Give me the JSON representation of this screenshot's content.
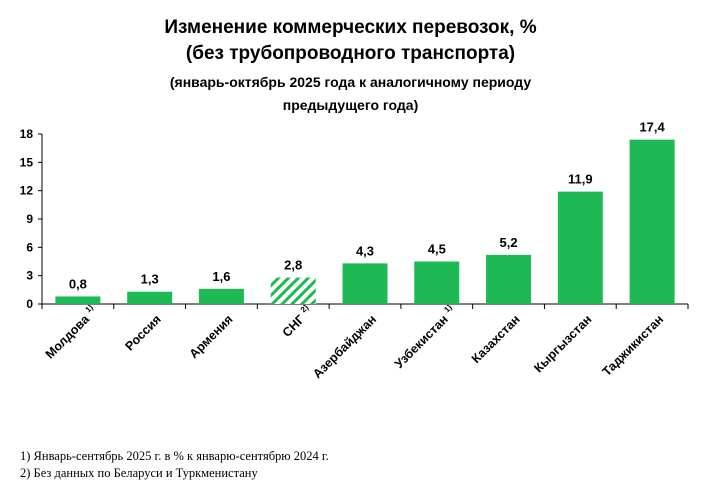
{
  "title_line1": "Изменение коммерческих перевозок, %",
  "title_line2": "(без трубопроводного транспорта)",
  "subtitle_line1": "(январь-октябрь 2025 года к аналогичному периоду",
  "subtitle_line2": "предыдущего года)",
  "footnotes": [
    "1) Январь-сентябрь 2025 г. в % к январю-сентябрю 2024 г.",
    "2)  Без данных по Беларуси и Туркменистану"
  ],
  "chart_data": {
    "type": "bar",
    "categories": [
      "Молдова",
      "Россия",
      "Армения",
      "СНГ",
      "Азербайджан",
      "Узбекистан",
      "Казахстан",
      "Кыргызстан",
      "Таджикистан"
    ],
    "category_marks": [
      "1)",
      "",
      "",
      "2)",
      "",
      "1)",
      "",
      "",
      ""
    ],
    "values": [
      0.8,
      1.3,
      1.6,
      2.8,
      4.3,
      4.5,
      5.2,
      11.9,
      17.4
    ],
    "value_labels": [
      "0,8",
      "1,3",
      "1,6",
      "2,8",
      "4,3",
      "4,5",
      "5,2",
      "11,9",
      "17,4"
    ],
    "highlight": [
      false,
      false,
      false,
      true,
      false,
      false,
      false,
      false,
      false
    ],
    "yticks": [
      0,
      3,
      6,
      9,
      12,
      15,
      18
    ],
    "ylim": [
      0,
      18
    ],
    "grid": false,
    "color": "#1db954",
    "hatch_color": "#1db954"
  }
}
